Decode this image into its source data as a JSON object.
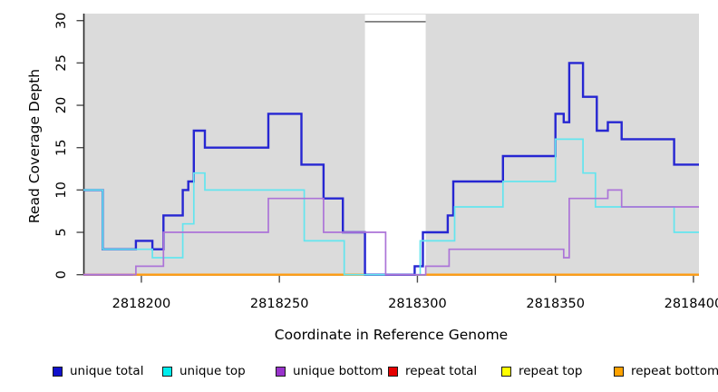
{
  "chart_data": {
    "type": "line",
    "subtype": "step-coverage",
    "title": "",
    "xlabel": "Coordinate in Reference Genome",
    "ylabel": "Read Coverage Depth",
    "xlim": [
      2818179,
      2818402
    ],
    "ylim": [
      0,
      30
    ],
    "x_ticks": [
      2818200,
      2818250,
      2818300,
      2818350,
      2818400
    ],
    "y_ticks": [
      0,
      5,
      10,
      15,
      20,
      25,
      30
    ],
    "panel_background": "#DBDBDB",
    "masked_region": {
      "start": 2818281,
      "end": 2818303,
      "fill": "#FFFFFF",
      "cap_depth": 30,
      "cap_color": "#7E7E7E"
    },
    "legend_position": "bottom",
    "grid": false,
    "series": [
      {
        "id": "unique-total",
        "label": "unique total",
        "legend_color": "#1111CC",
        "line_color": "#2626D2",
        "line_width": 2.4,
        "segments": [
          {
            "end": 2818402,
            "points": [
              [
                2818179,
                10
              ],
              [
                2818186,
                3
              ],
              [
                2818198,
                4
              ],
              [
                2818204,
                3
              ],
              [
                2818208,
                7
              ],
              [
                2818215,
                10
              ],
              [
                2818217,
                11
              ],
              [
                2818219,
                17
              ],
              [
                2818223,
                15
              ],
              [
                2818246,
                19
              ],
              [
                2818258,
                13
              ],
              [
                2818266,
                9
              ],
              [
                2818273,
                5
              ],
              [
                2818281,
                0
              ],
              [
                2818299,
                1
              ],
              [
                2818302,
                5
              ],
              [
                2818311,
                7
              ],
              [
                2818313,
                11
              ],
              [
                2818331,
                14
              ],
              [
                2818350,
                19
              ],
              [
                2818353,
                18
              ],
              [
                2818355,
                25
              ],
              [
                2818360,
                21
              ],
              [
                2818365,
                17
              ],
              [
                2818369,
                18
              ],
              [
                2818374,
                16
              ],
              [
                2818393,
                13
              ]
            ]
          }
        ]
      },
      {
        "id": "unique-top",
        "label": "unique top",
        "legend_color": "#00EDED",
        "line_color": "#63E5EF",
        "line_width": 1.7,
        "segments": [
          {
            "end": 2818402,
            "points": [
              [
                2818179,
                10
              ],
              [
                2818186,
                3
              ],
              [
                2818204,
                2
              ],
              [
                2818215,
                6
              ],
              [
                2818219,
                12
              ],
              [
                2818223,
                10
              ],
              [
                2818259,
                4
              ],
              [
                2818273.5,
                0
              ],
              [
                2818301,
                4
              ],
              [
                2818313.5,
                8
              ],
              [
                2818331,
                11
              ],
              [
                2818350,
                16
              ],
              [
                2818360,
                12
              ],
              [
                2818364.5,
                8
              ],
              [
                2818393,
                5
              ]
            ]
          }
        ]
      },
      {
        "id": "unique-bottom",
        "label": "unique bottom",
        "legend_color": "#9933CC",
        "line_color": "#AC74D8",
        "line_width": 1.7,
        "segments": [
          {
            "end": 2818402,
            "points": [
              [
                2818179,
                0
              ],
              [
                2818198,
                1
              ],
              [
                2818208,
                5
              ],
              [
                2818246,
                9
              ],
              [
                2818266,
                5
              ],
              [
                2818288.5,
                0
              ],
              [
                2818303,
                1
              ],
              [
                2818311.5,
                3
              ],
              [
                2818353,
                2
              ],
              [
                2818355,
                9
              ],
              [
                2818369,
                10
              ],
              [
                2818374,
                8
              ]
            ]
          }
        ]
      },
      {
        "id": "repeat-total",
        "label": "repeat total",
        "legend_color": "#E60000",
        "line_color": "#D2607E",
        "line_width": 2.2,
        "segments": [
          {
            "end": 2818197,
            "points": [
              [
                2818179,
                0
              ]
            ]
          }
        ]
      },
      {
        "id": "repeat-top",
        "label": "repeat top",
        "legend_color": "#FFFF00",
        "line_color": "#FFFF33",
        "line_width": 1.4,
        "segments": [
          {
            "end": 2818281,
            "points": [
              [
                2818197,
                0
              ]
            ]
          },
          {
            "end": 2818402,
            "points": [
              [
                2818303,
                0
              ]
            ]
          }
        ]
      },
      {
        "id": "repeat-bottom",
        "label": "repeat bottom",
        "legend_color": "#FFA200",
        "line_color": "#FF9E14",
        "line_width": 2.4,
        "segments": [
          {
            "end": 2818281,
            "points": [
              [
                2818197,
                0
              ]
            ]
          },
          {
            "end": 2818402,
            "points": [
              [
                2818303,
                0
              ]
            ]
          }
        ]
      }
    ]
  }
}
